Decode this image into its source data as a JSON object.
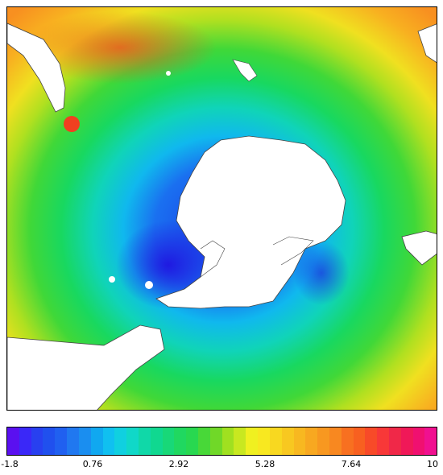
{
  "map": {
    "projection": "south-polar-stereographic",
    "field": "sea-surface-temperature"
  },
  "colorbar": {
    "min": -1.8,
    "max": 10,
    "ticks": [
      "-1.8",
      "0.76",
      "2.92",
      "5.28",
      "7.64",
      "10"
    ],
    "colors": [
      "#5a10f0",
      "#3a28f8",
      "#2840f0",
      "#2050ee",
      "#2060f0",
      "#2078f0",
      "#1a8ef0",
      "#10a8f0",
      "#10c0f0",
      "#10d0e0",
      "#10d8c8",
      "#10d8a8",
      "#10d890",
      "#18d878",
      "#20d860",
      "#28d850",
      "#48d838",
      "#70d828",
      "#a0e020",
      "#c8e820",
      "#f0f020",
      "#f8e820",
      "#f8d820",
      "#f8c820",
      "#f8b820",
      "#f8a820",
      "#f89820",
      "#f88820",
      "#f87020",
      "#f86020",
      "#f84a28",
      "#f83838",
      "#f02848",
      "#f01858",
      "#f01070",
      "#f01090"
    ]
  }
}
